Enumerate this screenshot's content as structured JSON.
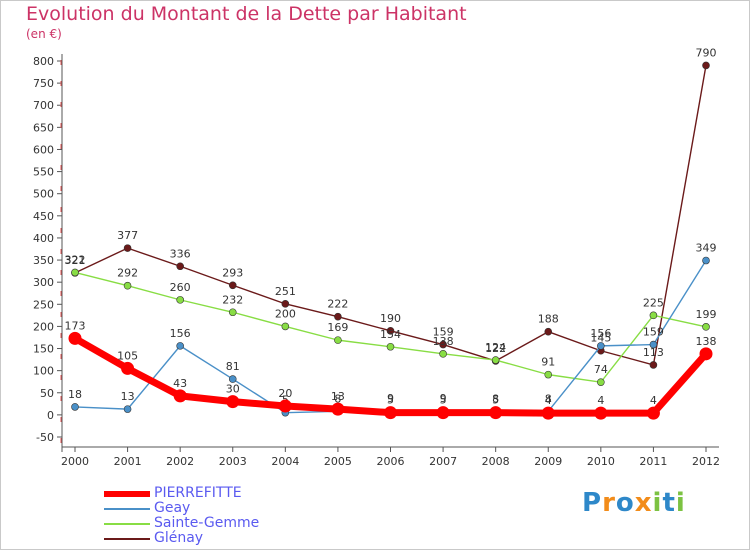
{
  "chart_data": {
    "type": "line",
    "title": "Evolution du Montant de la Dette par Habitant",
    "subtitle": "(en €)",
    "categories": [
      "2000",
      "2001",
      "2002",
      "2003",
      "2004",
      "2005",
      "2006",
      "2007",
      "2008",
      "2009",
      "2010",
      "2011",
      "2012"
    ],
    "ylim": [
      -50,
      800
    ],
    "yticks": [
      -50,
      0,
      50,
      100,
      150,
      200,
      250,
      300,
      350,
      400,
      450,
      500,
      550,
      600,
      650,
      700,
      750,
      800
    ],
    "grid": false,
    "legend_position": "bottom-left",
    "series": [
      {
        "name": "PIERREFITTE",
        "color": "#ff0000",
        "values": [
          173,
          105,
          43,
          30,
          20,
          13,
          5,
          5,
          5,
          4,
          4,
          4,
          138
        ],
        "labels": [
          "173",
          "105",
          "43",
          "30",
          "20",
          "13",
          "5",
          "5",
          "5",
          "4",
          "4",
          "4",
          "138"
        ]
      },
      {
        "name": "Geay",
        "color": "#4a90c8",
        "values": [
          18,
          13,
          156,
          81,
          5,
          8,
          9,
          9,
          8,
          8,
          156,
          159,
          349
        ],
        "labels": [
          "18",
          "13",
          "156",
          "81",
          "5",
          "8",
          "9",
          "9",
          "8",
          "8",
          "156",
          "159",
          "349"
        ]
      },
      {
        "name": "Sainte-Gemme",
        "color": "#88dd44",
        "values": [
          322,
          292,
          260,
          232,
          200,
          169,
          154,
          138,
          124,
          91,
          74,
          225,
          199
        ],
        "labels": [
          "322",
          "292",
          "260",
          "232",
          "200",
          "169",
          "154",
          "138",
          "124",
          "91",
          "74",
          "225",
          "199"
        ]
      },
      {
        "name": "Glénay",
        "color": "#6b1a1a",
        "values": [
          321,
          377,
          336,
          293,
          251,
          222,
          190,
          159,
          122,
          188,
          145,
          113,
          790
        ],
        "labels": [
          "321",
          "377",
          "336",
          "293",
          "251",
          "222",
          "190",
          "159",
          "122",
          "188",
          "145",
          "113",
          "790"
        ]
      }
    ]
  },
  "logo": {
    "text": "Proxiti",
    "letters": [
      {
        "ch": "P",
        "color": "#2e88c9"
      },
      {
        "ch": "r",
        "color": "#f28c1a"
      },
      {
        "ch": "o",
        "color": "#2e88c9"
      },
      {
        "ch": "x",
        "color": "#f28c1a"
      },
      {
        "ch": "i",
        "color": "#7cc242"
      },
      {
        "ch": "t",
        "color": "#2e88c9"
      },
      {
        "ch": "i",
        "color": "#7cc242"
      }
    ]
  }
}
